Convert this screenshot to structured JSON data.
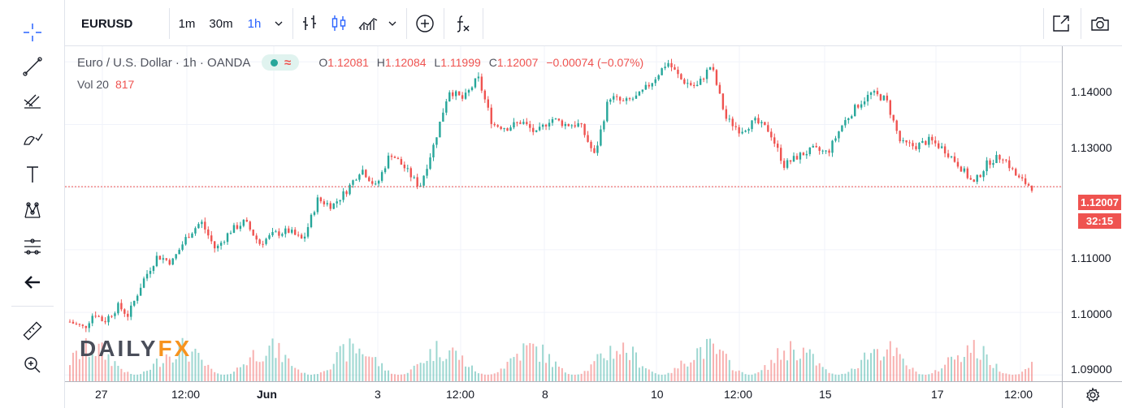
{
  "toolbar": {
    "symbol": "EURUSD",
    "intervals": [
      "1m",
      "30m",
      "1h"
    ],
    "active_interval": "1h",
    "icons": [
      "chevron-down-icon",
      "bar-chart-icon",
      "candles-icon",
      "area-chart-icon",
      "chevron-down-icon",
      "add-compare-icon",
      "indicators-icon",
      "fullscreen-icon",
      "camera-icon"
    ]
  },
  "left_tools": [
    "crosshair-icon",
    "trend-line-icon",
    "fib-icon",
    "brush-icon",
    "text-icon",
    "pattern-icon",
    "measure-tools-icon",
    "back-arrow-icon",
    "ruler-icon",
    "zoom-in-icon"
  ],
  "legend": {
    "title": "Euro / U.S. Dollar · 1h · OANDA",
    "o_label": "O",
    "o": "1.12081",
    "h_label": "H",
    "h": "1.12084",
    "l_label": "L",
    "l": "1.11999",
    "c_label": "C",
    "c": "1.12007",
    "change": "−0.00074 (−0.07%)"
  },
  "volume_legend": {
    "label": "Vol 20",
    "value": "817"
  },
  "logo": {
    "part1": "DAILY",
    "part2": "FX"
  },
  "price_axis": {
    "ticks": [
      "1.14000",
      "1.13000",
      "1.12000",
      "1.11000",
      "1.10000",
      "1.09000"
    ],
    "last_price": "1.12007",
    "countdown": "32:15"
  },
  "time_axis": {
    "ticks": [
      "27",
      "12:00",
      "Jun",
      "3",
      "12:00",
      "8",
      "10",
      "12:00",
      "15",
      "17",
      "12:00"
    ]
  },
  "colors": {
    "up": "#26a69a",
    "down": "#ef5350",
    "accent": "#2962ff"
  },
  "chart_data": {
    "type": "candlestick",
    "symbol": "EURUSD",
    "interval": "1h",
    "ylim": [
      1.089,
      1.1425
    ],
    "last_price": 1.12007,
    "close_path": [
      [
        0,
        1.0985
      ],
      [
        3,
        1.0975
      ],
      [
        5,
        1.1
      ],
      [
        7,
        1.0985
      ],
      [
        10,
        1.101
      ],
      [
        12,
        1.0995
      ],
      [
        15,
        1.105
      ],
      [
        18,
        1.109
      ],
      [
        21,
        1.108
      ],
      [
        24,
        1.112
      ],
      [
        27,
        1.1145
      ],
      [
        30,
        1.11
      ],
      [
        33,
        1.113
      ],
      [
        36,
        1.1145
      ],
      [
        39,
        1.111
      ],
      [
        42,
        1.1125
      ],
      [
        45,
        1.113
      ],
      [
        48,
        1.1115
      ],
      [
        51,
        1.118
      ],
      [
        54,
        1.117
      ],
      [
        57,
        1.1195
      ],
      [
        60,
        1.123
      ],
      [
        63,
        1.12
      ],
      [
        66,
        1.1255
      ],
      [
        69,
        1.123
      ],
      [
        72,
        1.12
      ],
      [
        75,
        1.127
      ],
      [
        78,
        1.1355
      ],
      [
        81,
        1.134
      ],
      [
        84,
        1.1375
      ],
      [
        87,
        1.13
      ],
      [
        90,
        1.1295
      ],
      [
        93,
        1.1305
      ],
      [
        96,
        1.1285
      ],
      [
        99,
        1.131
      ],
      [
        102,
        1.13
      ],
      [
        105,
        1.13
      ],
      [
        108,
        1.125
      ],
      [
        111,
        1.1345
      ],
      [
        114,
        1.1335
      ],
      [
        117,
        1.1345
      ],
      [
        120,
        1.137
      ],
      [
        123,
        1.14
      ],
      [
        126,
        1.137
      ],
      [
        129,
        1.136
      ],
      [
        132,
        1.1395
      ],
      [
        135,
        1.131
      ],
      [
        138,
        1.129
      ],
      [
        141,
        1.1305
      ],
      [
        144,
        1.129
      ],
      [
        147,
        1.1235
      ],
      [
        150,
        1.125
      ],
      [
        153,
        1.126
      ],
      [
        156,
        1.1255
      ],
      [
        159,
        1.13
      ],
      [
        162,
        1.133
      ],
      [
        165,
        1.135
      ],
      [
        168,
        1.134
      ],
      [
        171,
        1.127
      ],
      [
        174,
        1.1265
      ],
      [
        177,
        1.1275
      ],
      [
        180,
        1.126
      ],
      [
        183,
        1.1235
      ],
      [
        186,
        1.1205
      ],
      [
        189,
        1.124
      ],
      [
        192,
        1.125
      ],
      [
        195,
        1.1215
      ],
      [
        198,
        1.12
      ]
    ],
    "volume_spikes": [
      [
        130,
        1.0965
      ],
      [
        148,
        1.1003
      ],
      [
        118,
        1.0994
      ]
    ]
  }
}
